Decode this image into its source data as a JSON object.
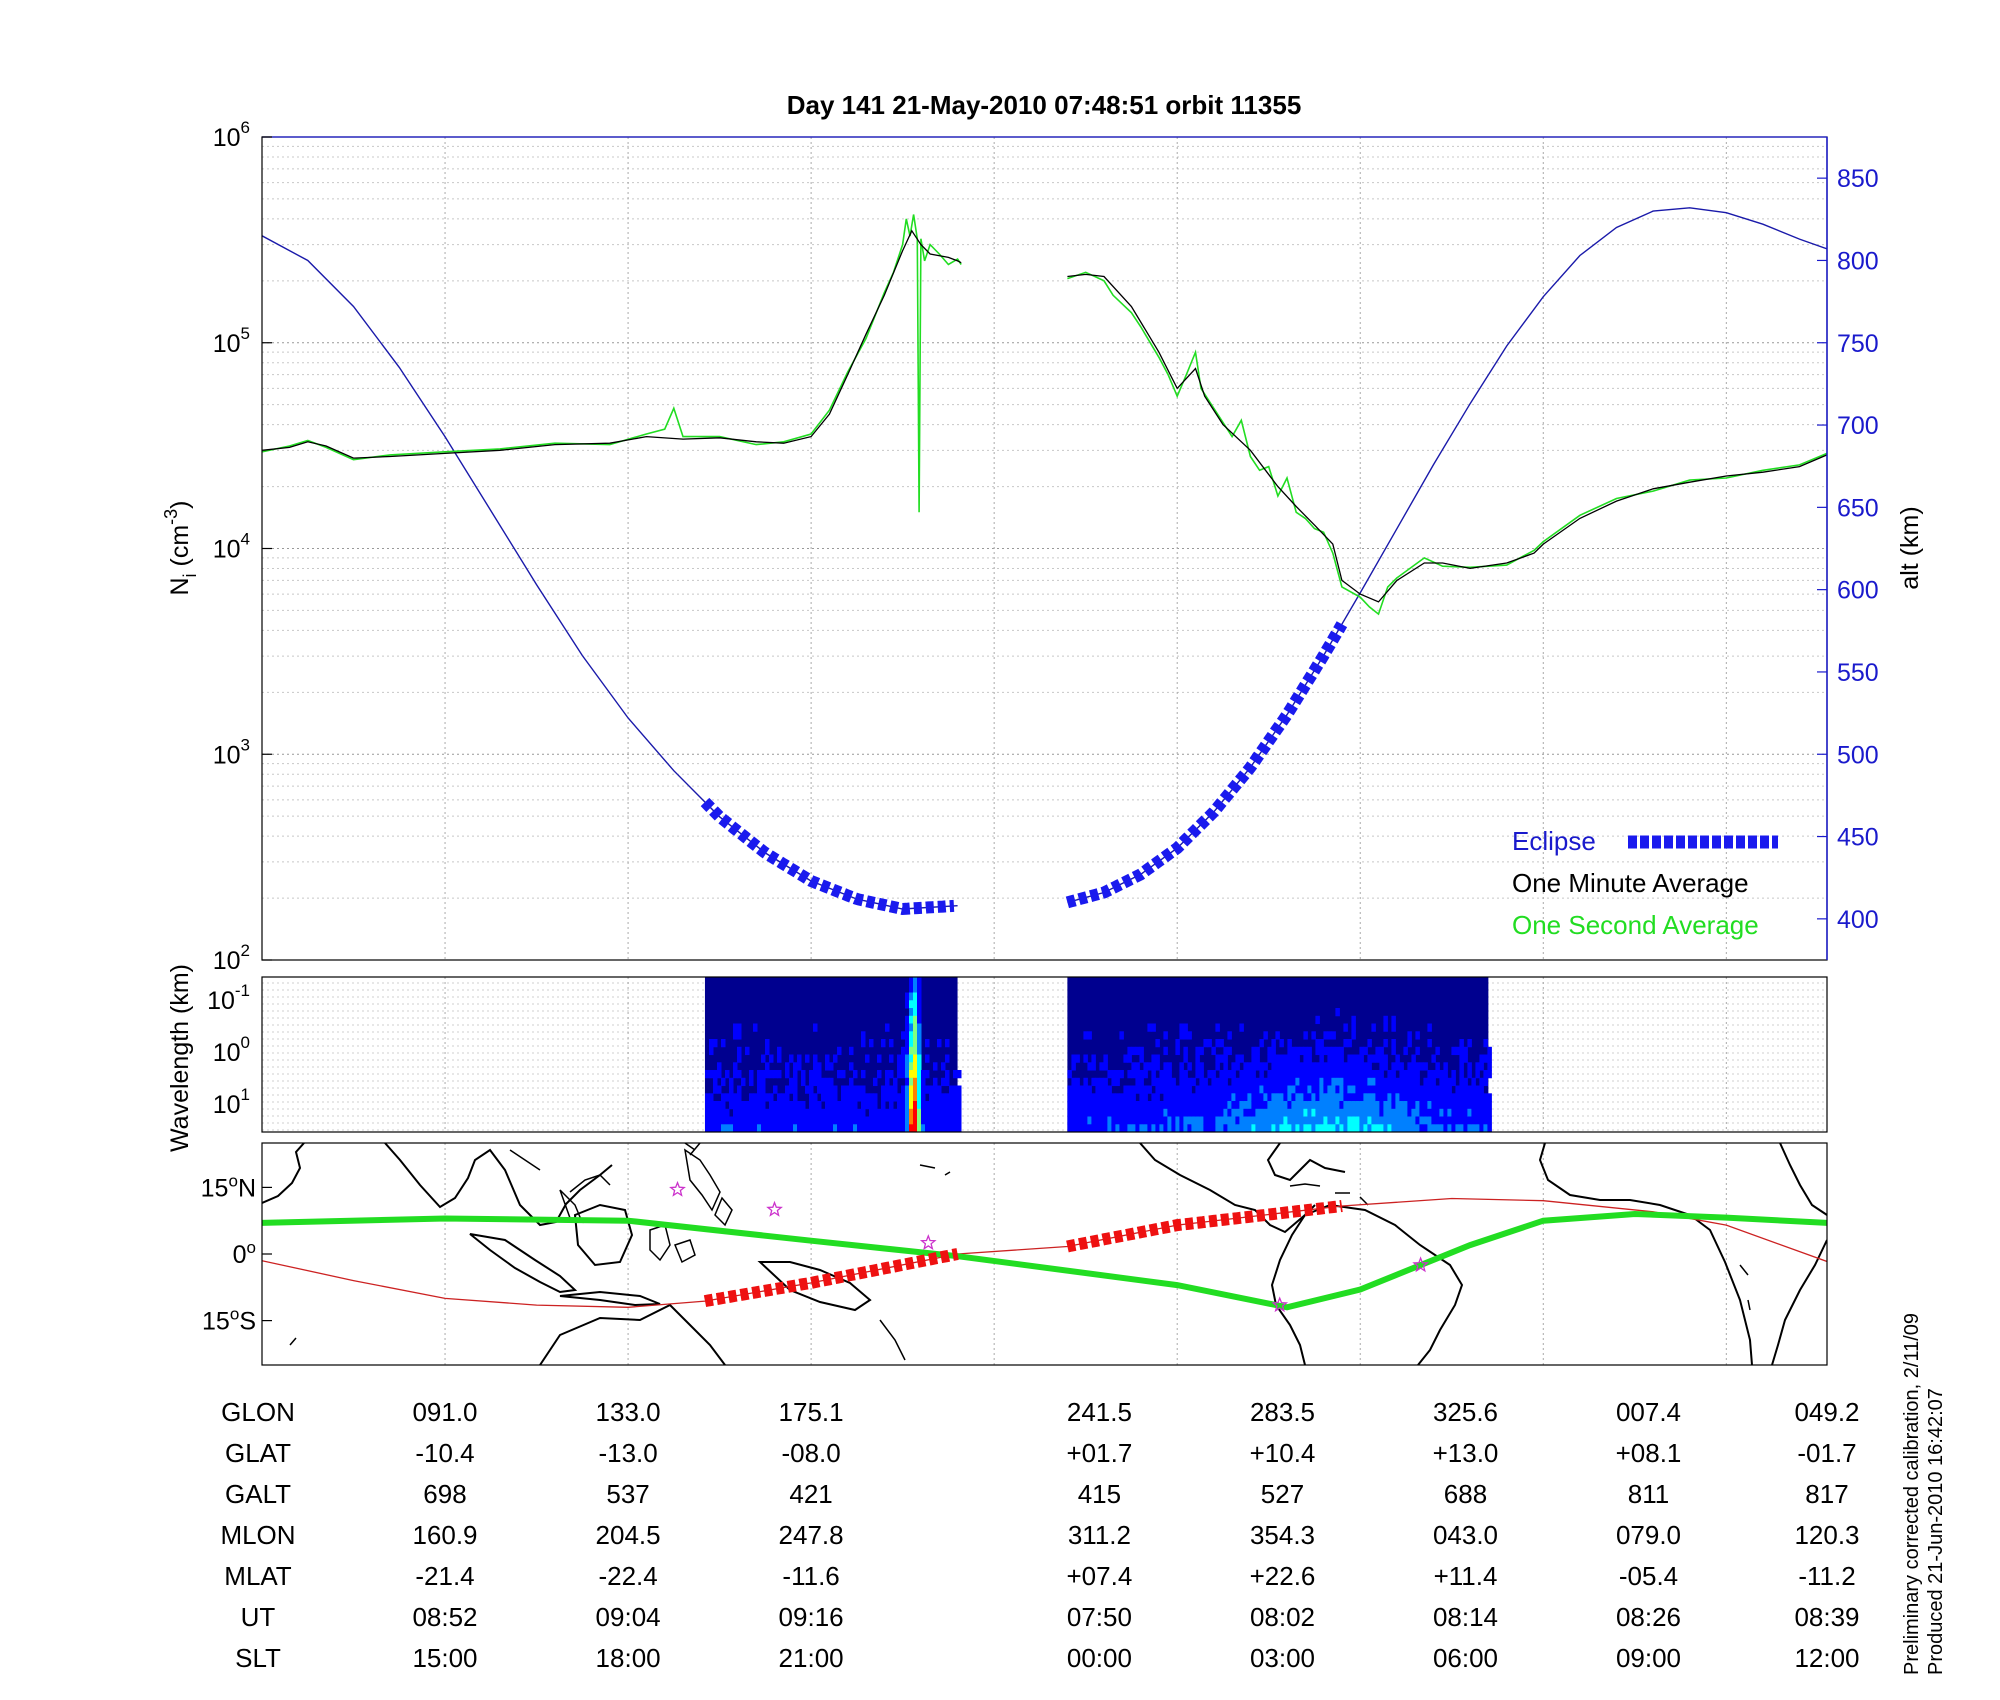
{
  "chart_data": [
    {
      "type": "line",
      "title": "Day 141   21-May-2010 07:48:51    orbit 11355",
      "ylabel_left": "N",
      "ylabel_left_sub": "i",
      "ylabel_left_unit_pre": " (cm",
      "ylabel_left_unit_sup": "-3",
      "ylabel_left_unit_post": ")",
      "ylabel_right": "alt (km)",
      "y_scale_left": "log",
      "ylim_left": [
        100,
        1000000
      ],
      "y_ticks_left": [
        {
          "base": "10",
          "exp": "2"
        },
        {
          "base": "10",
          "exp": "3"
        },
        {
          "base": "10",
          "exp": "4"
        },
        {
          "base": "10",
          "exp": "5"
        },
        {
          "base": "10",
          "exp": "6"
        }
      ],
      "ylim_right": [
        375,
        875
      ],
      "y_ticks_right": [
        "400",
        "450",
        "500",
        "550",
        "600",
        "650",
        "700",
        "750",
        "800",
        "850"
      ],
      "grid": true,
      "legend": "bottom-right",
      "legend_entries": [
        "Eclipse",
        "One Minute Average",
        "One Second Average"
      ],
      "colors": {
        "eclipse": "#1a1aee",
        "minute": "#000000",
        "second": "#22dd22",
        "altitude": "#1a1aaa"
      },
      "x_domain": [
        0,
        8.55
      ],
      "series": [
        {
          "name": "One Minute Average",
          "points": [
            [
              0,
              30000
            ],
            [
              0.15,
              31000
            ],
            [
              0.25,
              33000
            ],
            [
              0.35,
              31500
            ],
            [
              0.5,
              27500
            ],
            [
              0.7,
              28000
            ],
            [
              1.0,
              29000
            ],
            [
              1.3,
              30000
            ],
            [
              1.6,
              32000
            ],
            [
              1.9,
              32500
            ],
            [
              2.1,
              35000
            ],
            [
              2.3,
              34000
            ],
            [
              2.5,
              34500
            ],
            [
              2.7,
              33000
            ],
            [
              2.85,
              32500
            ],
            [
              3.0,
              35000
            ],
            [
              3.1,
              45000
            ],
            [
              3.2,
              70000
            ],
            [
              3.3,
              110000
            ],
            [
              3.4,
              170000
            ],
            [
              3.5,
              280000
            ],
            [
              3.55,
              350000
            ],
            [
              3.6,
              300000
            ],
            [
              3.65,
              270000
            ],
            [
              3.75,
              260000
            ],
            [
              3.8,
              250000
            ],
            [
              3.82,
              245000
            ],
            [
              null,
              null
            ],
            [
              4.4,
              210000
            ],
            [
              4.5,
              215000
            ],
            [
              4.6,
              210000
            ],
            [
              4.75,
              150000
            ],
            [
              4.9,
              90000
            ],
            [
              5.0,
              60000
            ],
            [
              5.1,
              75000
            ],
            [
              5.15,
              55000
            ],
            [
              5.25,
              40000
            ],
            [
              5.4,
              30000
            ],
            [
              5.55,
              20000
            ],
            [
              5.65,
              16000
            ],
            [
              5.75,
              13000
            ],
            [
              5.85,
              10500
            ],
            [
              5.9,
              7000
            ],
            [
              6.0,
              6000
            ],
            [
              6.1,
              5500
            ],
            [
              6.2,
              7000
            ],
            [
              6.35,
              8500
            ],
            [
              6.45,
              8500
            ],
            [
              6.6,
              8000
            ],
            [
              6.8,
              8500
            ],
            [
              6.95,
              9500
            ],
            [
              7.0,
              10500
            ],
            [
              7.2,
              14000
            ],
            [
              7.4,
              17000
            ],
            [
              7.6,
              19500
            ],
            [
              7.8,
              21000
            ],
            [
              8.0,
              22500
            ],
            [
              8.2,
              23500
            ],
            [
              8.4,
              25000
            ],
            [
              8.55,
              28500
            ]
          ]
        },
        {
          "name": "One Second Average",
          "points": [
            [
              0,
              29500
            ],
            [
              0.15,
              31500
            ],
            [
              0.25,
              33500
            ],
            [
              0.35,
              31000
            ],
            [
              0.5,
              27000
            ],
            [
              0.7,
              28500
            ],
            [
              1.0,
              29500
            ],
            [
              1.3,
              30500
            ],
            [
              1.6,
              32500
            ],
            [
              1.9,
              32000
            ],
            [
              2.1,
              36000
            ],
            [
              2.2,
              38000
            ],
            [
              2.25,
              48000
            ],
            [
              2.3,
              35000
            ],
            [
              2.5,
              35000
            ],
            [
              2.7,
              32000
            ],
            [
              2.85,
              33000
            ],
            [
              3.0,
              36000
            ],
            [
              3.1,
              47000
            ],
            [
              3.2,
              72000
            ],
            [
              3.3,
              105000
            ],
            [
              3.4,
              175000
            ],
            [
              3.45,
              220000
            ],
            [
              3.5,
              300000
            ],
            [
              3.52,
              400000
            ],
            [
              3.54,
              330000
            ],
            [
              3.56,
              420000
            ],
            [
              3.58,
              320000
            ],
            [
              3.59,
              15000
            ],
            [
              3.6,
              320000
            ],
            [
              3.62,
              250000
            ],
            [
              3.65,
              300000
            ],
            [
              3.7,
              270000
            ],
            [
              3.75,
              240000
            ],
            [
              3.8,
              255000
            ],
            [
              3.82,
              240000
            ],
            [
              null,
              null
            ],
            [
              4.4,
              205000
            ],
            [
              4.5,
              220000
            ],
            [
              4.6,
              200000
            ],
            [
              4.65,
              170000
            ],
            [
              4.75,
              140000
            ],
            [
              4.8,
              120000
            ],
            [
              4.9,
              85000
            ],
            [
              4.95,
              70000
            ],
            [
              5.0,
              55000
            ],
            [
              5.05,
              70000
            ],
            [
              5.1,
              90000
            ],
            [
              5.13,
              60000
            ],
            [
              5.2,
              48000
            ],
            [
              5.3,
              35000
            ],
            [
              5.35,
              42000
            ],
            [
              5.4,
              28000
            ],
            [
              5.45,
              24000
            ],
            [
              5.5,
              25000
            ],
            [
              5.55,
              18000
            ],
            [
              5.6,
              22000
            ],
            [
              5.65,
              15000
            ],
            [
              5.7,
              14000
            ],
            [
              5.75,
              12500
            ],
            [
              5.8,
              12000
            ],
            [
              5.85,
              9500
            ],
            [
              5.9,
              6500
            ],
            [
              6.0,
              5800
            ],
            [
              6.05,
              5200
            ],
            [
              6.1,
              4800
            ],
            [
              6.15,
              6500
            ],
            [
              6.2,
              7200
            ],
            [
              6.35,
              9000
            ],
            [
              6.45,
              8200
            ],
            [
              6.6,
              8100
            ],
            [
              6.8,
              8300
            ],
            [
              6.95,
              9800
            ],
            [
              7.0,
              10800
            ],
            [
              7.2,
              14500
            ],
            [
              7.4,
              17500
            ],
            [
              7.6,
              19000
            ],
            [
              7.8,
              21500
            ],
            [
              8.0,
              22000
            ],
            [
              8.2,
              24000
            ],
            [
              8.4,
              25500
            ],
            [
              8.55,
              29000
            ]
          ]
        },
        {
          "name": "altitude",
          "axis": "right",
          "points": [
            [
              0,
              815
            ],
            [
              0.25,
              800
            ],
            [
              0.5,
              772
            ],
            [
              0.75,
              735
            ],
            [
              1.0,
              693
            ],
            [
              1.25,
              648
            ],
            [
              1.5,
              603
            ],
            [
              1.75,
              560
            ],
            [
              2.0,
              522
            ],
            [
              2.25,
              490
            ],
            [
              2.5,
              462
            ],
            [
              2.75,
              440
            ],
            [
              3.0,
              423
            ],
            [
              3.25,
              412
            ],
            [
              3.5,
              406
            ],
            [
              3.8,
              408
            ],
            [
              null,
              null
            ],
            [
              4.4,
              410
            ],
            [
              4.6,
              416
            ],
            [
              4.8,
              427
            ],
            [
              5.0,
              443
            ],
            [
              5.2,
              465
            ],
            [
              5.4,
              492
            ],
            [
              5.6,
              524
            ],
            [
              5.8,
              560
            ],
            [
              6.0,
              598
            ],
            [
              6.2,
              637
            ],
            [
              6.4,
              676
            ],
            [
              6.6,
              713
            ],
            [
              6.8,
              748
            ],
            [
              7.0,
              778
            ],
            [
              7.2,
              803
            ],
            [
              7.4,
              820
            ],
            [
              7.6,
              830
            ],
            [
              7.8,
              832
            ],
            [
              8.0,
              829
            ],
            [
              8.2,
              822
            ],
            [
              8.4,
              813
            ],
            [
              8.55,
              807
            ]
          ]
        },
        {
          "name": "Eclipse",
          "axis": "right",
          "segments": [
            [
              2.42,
              3.8
            ],
            [
              4.4,
              5.9
            ]
          ]
        }
      ]
    },
    {
      "type": "heatmap",
      "ylabel": "Wavelength (km)",
      "y_ticks": [
        {
          "base": "10",
          "exp": "-1"
        },
        {
          "base": "10",
          "exp": "0"
        },
        {
          "base": "10",
          "exp": "1"
        }
      ],
      "data_windows": [
        [
          2.42,
          3.8
        ],
        [
          4.4,
          6.7
        ]
      ],
      "enhancement_center": 3.55,
      "colormap": [
        "#00008f",
        "#0000ff",
        "#0080ff",
        "#00ffff",
        "#80ff80",
        "#ffff00",
        "#ff8000",
        "#ff0000"
      ]
    },
    {
      "type": "line",
      "subtype": "map",
      "y_ticks": [
        {
          "deg": "15",
          "hem": "N"
        },
        {
          "deg": "0",
          "hem": ""
        },
        {
          "deg": "15",
          "hem": "S"
        }
      ],
      "ylim": [
        -25,
        25
      ],
      "series": [
        {
          "name": "magnetic equator",
          "color": "#22dd22",
          "points": [
            [
              0,
              7.0
            ],
            [
              1.0,
              8.0
            ],
            [
              2.0,
              7.5
            ],
            [
              3.0,
              3.0
            ],
            [
              3.8,
              -0.5
            ],
            [
              5.0,
              -7.0
            ],
            [
              5.6,
              -12.0
            ],
            [
              6.0,
              -8.0
            ],
            [
              6.6,
              2.0
            ],
            [
              7.0,
              7.5
            ],
            [
              7.5,
              9.0
            ],
            [
              8.0,
              8.2
            ],
            [
              8.55,
              7.0
            ]
          ]
        },
        {
          "name": "ground track",
          "color": "#cc2222",
          "points": [
            [
              0,
              -1.5
            ],
            [
              0.5,
              -6.0
            ],
            [
              1.0,
              -10.0
            ],
            [
              1.5,
              -11.5
            ],
            [
              2.0,
              -12.0
            ],
            [
              2.42,
              -10.6
            ],
            [
              3.0,
              -6.5
            ],
            [
              3.8,
              0.0
            ],
            [
              4.4,
              1.7
            ],
            [
              5.0,
              6.5
            ],
            [
              5.9,
              10.8
            ],
            [
              6.5,
              12.5
            ],
            [
              7.0,
              12.0
            ],
            [
              7.6,
              9.5
            ],
            [
              8.0,
              6.5
            ],
            [
              8.55,
              -1.7
            ]
          ]
        },
        {
          "name": "eclipse track",
          "color": "#ee1111",
          "segments": [
            [
              2.42,
              3.8
            ],
            [
              4.4,
              5.9
            ]
          ]
        }
      ],
      "stars": [
        [
          2.27,
          14.5
        ],
        [
          2.8,
          10.0
        ],
        [
          3.64,
          2.5
        ],
        [
          5.56,
          -11.5
        ],
        [
          6.33,
          -2.5
        ]
      ]
    }
  ],
  "table": {
    "rows": [
      {
        "label": "GLON",
        "values": [
          "091.0",
          "133.0",
          "175.1",
          "241.5",
          "283.5",
          "325.6",
          "007.4",
          "049.2"
        ]
      },
      {
        "label": "GLAT",
        "values": [
          "-10.4",
          "-13.0",
          "-08.0",
          "+01.7",
          "+10.4",
          "+13.0",
          "+08.1",
          "-01.7"
        ]
      },
      {
        "label": "GALT",
        "values": [
          "698",
          "537",
          "421",
          "415",
          "527",
          "688",
          "811",
          "817"
        ]
      },
      {
        "label": "MLON",
        "values": [
          "160.9",
          "204.5",
          "247.8",
          "311.2",
          "354.3",
          "043.0",
          "079.0",
          "120.3"
        ]
      },
      {
        "label": "MLAT",
        "values": [
          "-21.4",
          "-22.4",
          "-11.6",
          "+07.4",
          "+22.6",
          "+11.4",
          "-05.4",
          "-11.2"
        ]
      },
      {
        "label": "UT",
        "values": [
          "08:52",
          "09:04",
          "09:16",
          "07:50",
          "08:02",
          "08:14",
          "08:26",
          "08:39"
        ]
      },
      {
        "label": "SLT",
        "values": [
          "15:00",
          "18:00",
          "21:00",
          "00:00",
          "03:00",
          "06:00",
          "09:00",
          "12:00"
        ]
      }
    ]
  },
  "footnote": {
    "line1": "Preliminary corrected calibration, 2/11/09",
    "line2": "Produced 21-Jun-2010 16:42:07"
  }
}
